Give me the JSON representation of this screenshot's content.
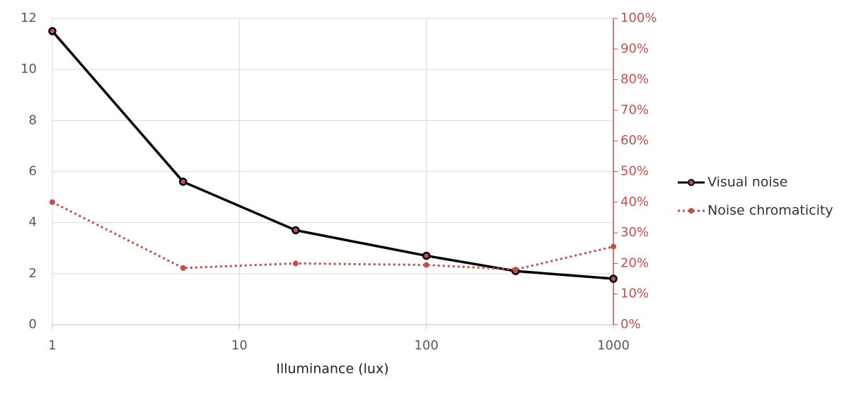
{
  "chart_data": {
    "type": "line",
    "x_label": "Illuminance (lux)",
    "x": [
      1,
      5,
      20,
      100,
      300,
      1000
    ],
    "xscale": "log",
    "xlim": [
      1,
      1000
    ],
    "xticks": [
      1,
      10,
      100,
      1000
    ],
    "ylim": [
      0,
      12
    ],
    "yticks": [
      0,
      2,
      4,
      6,
      8,
      10,
      12
    ],
    "y2lim": [
      0,
      100
    ],
    "y2ticks": [
      {
        "value": 0,
        "label": "0%"
      },
      {
        "value": 10,
        "label": "10%"
      },
      {
        "value": 20,
        "label": "20%"
      },
      {
        "value": 30,
        "label": "30%"
      },
      {
        "value": 40,
        "label": "40%"
      },
      {
        "value": 50,
        "label": "50%"
      },
      {
        "value": 60,
        "label": "60%"
      },
      {
        "value": 70,
        "label": "70%"
      },
      {
        "value": 80,
        "label": "80%"
      },
      {
        "value": 90,
        "label": "90%"
      },
      {
        "value": 100,
        "label": "100%"
      }
    ],
    "grid": true,
    "legend": "right",
    "series": [
      {
        "name": "Visual noise",
        "color": "#000000",
        "values": [
          11.5,
          5.6,
          3.7,
          2.7,
          2.1,
          1.8
        ]
      },
      {
        "name": "Noise chromaticity",
        "color": "#c0504d",
        "axis": "y2",
        "values": [
          40,
          18.5,
          20,
          19.5,
          18,
          25.5
        ]
      }
    ]
  }
}
